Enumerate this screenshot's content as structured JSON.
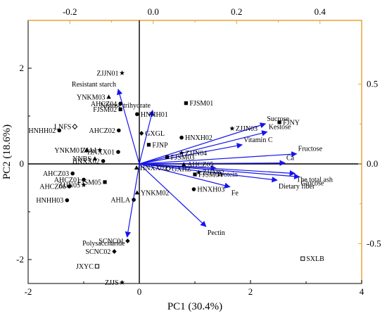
{
  "chart_data": {
    "type": "scatter",
    "title": "",
    "xlabel": "PC1 (30.4%)",
    "ylabel": "PC2 (18.6%)",
    "xlim": [
      -2,
      4
    ],
    "ylim": [
      -2.5,
      3
    ],
    "x_ticks": [
      "-2",
      "0",
      "2",
      "4"
    ],
    "y_ticks": [
      "-2",
      "0",
      "2"
    ],
    "top_axis": {
      "range": [
        -0.3,
        0.5
      ],
      "ticks": [
        "-0.2",
        "0.0",
        "0.2",
        "0.4"
      ],
      "color": "#E8A33C"
    },
    "right_axis": {
      "range": [
        -0.75,
        0.9
      ],
      "ticks": [
        "-0.5",
        "0.0",
        "0.5"
      ],
      "color": "#E8A33C"
    },
    "grid": false,
    "colors": {
      "arrow": "#1515EE",
      "axes": "#000000",
      "secondary_axes": "#E8A33C",
      "points": "#000000"
    },
    "samples": [
      {
        "label": "ZJJN01",
        "x": -0.31,
        "y": 1.9,
        "marker": "star"
      },
      {
        "label": "YNKM03",
        "x": -0.55,
        "y": 1.4,
        "marker": "triangle"
      },
      {
        "label": "AHCZ04",
        "x": -0.34,
        "y": 1.26,
        "marker": "circle"
      },
      {
        "label": "FJSM02",
        "x": -0.34,
        "y": 1.14,
        "marker": "square"
      },
      {
        "label": "FJSM01",
        "x": 0.84,
        "y": 1.27,
        "marker": "square"
      },
      {
        "label": "HNHH01",
        "x": -0.04,
        "y": 1.04,
        "marker": "circle"
      },
      {
        "label": "LNFS",
        "x": -1.16,
        "y": 0.78,
        "marker": "diamond-open"
      },
      {
        "label": "HNHH02",
        "x": -1.44,
        "y": 0.7,
        "marker": "circle"
      },
      {
        "label": "AHCZ02",
        "x": -0.37,
        "y": 0.7,
        "marker": "circle"
      },
      {
        "label": "HNXH02",
        "x": 0.76,
        "y": 0.55,
        "marker": "circle"
      },
      {
        "label": "GXGL",
        "x": 0.04,
        "y": 0.64,
        "marker": "diamond"
      },
      {
        "label": "ZJJN03",
        "x": 1.67,
        "y": 0.74,
        "marker": "star"
      },
      {
        "label": "FJNY",
        "x": 2.52,
        "y": 0.87,
        "marker": "square"
      },
      {
        "label": "FJNP",
        "x": 0.17,
        "y": 0.4,
        "marker": "square"
      },
      {
        "label": "YNKM01",
        "x": -0.95,
        "y": 0.29,
        "marker": "triangle"
      },
      {
        "label": "ZJAJ",
        "x": -0.71,
        "y": 0.29,
        "marker": "star"
      },
      {
        "label": "HNXX01",
        "x": -0.38,
        "y": 0.25,
        "marker": "circle"
      },
      {
        "label": "ZJJN04",
        "x": 0.76,
        "y": 0.23,
        "marker": "star"
      },
      {
        "label": "FJSM03",
        "x": 0.5,
        "y": 0.14,
        "marker": "square"
      },
      {
        "label": "YNBS",
        "x": -0.8,
        "y": 0.11,
        "marker": "triangle"
      },
      {
        "label": "HNXX02",
        "x": -0.65,
        "y": 0.06,
        "marker": "circle"
      },
      {
        "label": "AHCZ05",
        "x": 0.8,
        "y": -0.01,
        "marker": "triangle"
      },
      {
        "label": "HNXX02",
        "x": -0.05,
        "y": -0.08,
        "marker": "triangle"
      },
      {
        "label": "GXHZ",
        "x": 0.52,
        "y": -0.1,
        "marker": "diamond-open"
      },
      {
        "label": "AHCZ03",
        "x": -1.2,
        "y": -0.2,
        "marker": "circle"
      },
      {
        "label": "FJSM04",
        "x": 1.0,
        "y": -0.22,
        "marker": "square"
      },
      {
        "label": "ZJJN02",
        "x": 1.07,
        "y": -0.18,
        "marker": "star"
      },
      {
        "label": "AHCZ01",
        "x": -1.0,
        "y": -0.33,
        "marker": "circle"
      },
      {
        "label": "FJSM05",
        "x": -0.62,
        "y": -0.38,
        "marker": "square"
      },
      {
        "label": "AHCZ06",
        "x": -1.26,
        "y": -0.47,
        "marker": "circle"
      },
      {
        "label": "ZJJN05",
        "x": -1.0,
        "y": -0.44,
        "marker": "star"
      },
      {
        "label": "YNKM02",
        "x": -0.04,
        "y": -0.6,
        "marker": "triangle"
      },
      {
        "label": "HNXH03",
        "x": 0.98,
        "y": -0.53,
        "marker": "circle"
      },
      {
        "label": "AHLA",
        "x": -0.1,
        "y": -0.75,
        "marker": "circle"
      },
      {
        "label": "HNHH03",
        "x": -1.3,
        "y": -0.76,
        "marker": "circle"
      },
      {
        "label": "SCNC01",
        "x": -0.21,
        "y": -1.61,
        "marker": "diamond"
      },
      {
        "label": "SCNC02",
        "x": -0.45,
        "y": -1.83,
        "marker": "diamond"
      },
      {
        "label": "JXYC",
        "x": -0.76,
        "y": -2.14,
        "marker": "square-open"
      },
      {
        "label": "ZJJS",
        "x": -0.31,
        "y": -2.48,
        "marker": "star"
      },
      {
        "label": "SXLB",
        "x": 2.94,
        "y": -1.98,
        "marker": "square-open"
      }
    ],
    "loadings": [
      {
        "label": "Resistant starch",
        "x": -0.38,
        "y": 1.56
      },
      {
        "label": "Nistose trihydrate",
        "x": 0.24,
        "y": 1.12
      },
      {
        "label": "Sucrose",
        "x": 2.27,
        "y": 0.84
      },
      {
        "label": "Kestose",
        "x": 2.3,
        "y": 0.67
      },
      {
        "label": "Vitamin C",
        "x": 1.85,
        "y": 0.4
      },
      {
        "label": "Fructose",
        "x": 2.83,
        "y": 0.21
      },
      {
        "label": "Ca",
        "x": 2.62,
        "y": 0.02
      },
      {
        "label": "Protein",
        "x": 1.38,
        "y": -0.09
      },
      {
        "label": "The total ash",
        "x": 2.8,
        "y": -0.2
      },
      {
        "label": "Glucose",
        "x": 2.88,
        "y": -0.27
      },
      {
        "label": "Dietary fiber",
        "x": 2.48,
        "y": -0.34
      },
      {
        "label": "Fe",
        "x": 1.63,
        "y": -0.48
      },
      {
        "label": "Pectin",
        "x": 1.2,
        "y": -1.31
      },
      {
        "label": "Polysaccharide",
        "x": -0.22,
        "y": -1.53
      }
    ]
  }
}
